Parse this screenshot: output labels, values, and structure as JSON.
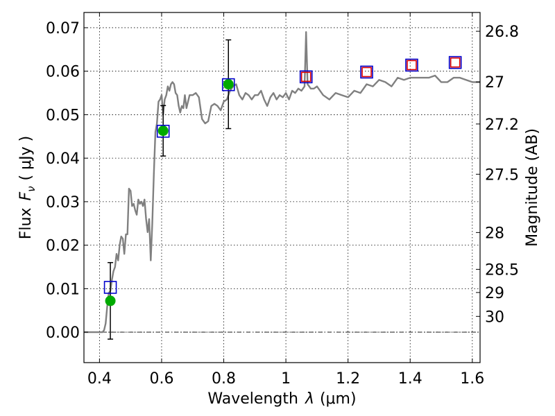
{
  "chart_data": {
    "type": "scatter",
    "xlabel_prefix": "Wavelength",
    "xlabel_var": "λ",
    "xlabel_unit": "(μm)",
    "ylabel_prefix": "Flux",
    "ylabel_var": "F",
    "ylabel_sub": "ν",
    "ylabel_unit": "( μJy )",
    "y2label": "Magnitude (AB)",
    "xlim": [
      0.35,
      1.625
    ],
    "ylim": [
      -0.007,
      0.0735
    ],
    "x_ticks": [
      0.4,
      0.6,
      0.8,
      1.0,
      1.2,
      1.4,
      1.6
    ],
    "x_tick_labels": [
      "0.4",
      "0.6",
      "0.8",
      "1",
      "1.2",
      "1.4",
      "1.6"
    ],
    "y_ticks": [
      0.0,
      0.01,
      0.02,
      0.03,
      0.04,
      0.05,
      0.06,
      0.07
    ],
    "y_tick_labels": [
      "0.00",
      "0.01",
      "0.02",
      "0.03",
      "0.04",
      "0.05",
      "0.06",
      "0.07"
    ],
    "y2_ticks": [
      {
        "label": "26.8",
        "flux": 0.06918
      },
      {
        "label": "27",
        "flux": 0.05754
      },
      {
        "label": "27.2",
        "flux": 0.04786
      },
      {
        "label": "27.5",
        "flux": 0.03631
      },
      {
        "label": "28",
        "flux": 0.02291
      },
      {
        "label": "28.5",
        "flux": 0.01445
      },
      {
        "label": "29",
        "flux": 0.00912
      },
      {
        "label": "30",
        "flux": 0.00363
      }
    ],
    "grid": true,
    "series": [
      {
        "name": "template_spectrum",
        "kind": "line",
        "color": "#808080",
        "x": [
          0.35,
          0.41,
          0.415,
          0.42,
          0.425,
          0.43,
          0.435,
          0.44,
          0.445,
          0.45,
          0.455,
          0.46,
          0.465,
          0.47,
          0.475,
          0.48,
          0.485,
          0.49,
          0.495,
          0.5,
          0.505,
          0.51,
          0.515,
          0.52,
          0.525,
          0.53,
          0.535,
          0.54,
          0.545,
          0.55,
          0.555,
          0.56,
          0.565,
          0.57,
          0.575,
          0.58,
          0.585,
          0.59,
          0.595,
          0.6,
          0.605,
          0.61,
          0.615,
          0.62,
          0.625,
          0.63,
          0.635,
          0.64,
          0.645,
          0.65,
          0.655,
          0.66,
          0.665,
          0.67,
          0.675,
          0.68,
          0.685,
          0.69,
          0.695,
          0.7,
          0.71,
          0.72,
          0.73,
          0.74,
          0.75,
          0.76,
          0.77,
          0.78,
          0.79,
          0.8,
          0.81,
          0.82,
          0.83,
          0.84,
          0.85,
          0.86,
          0.87,
          0.88,
          0.89,
          0.9,
          0.91,
          0.92,
          0.93,
          0.94,
          0.95,
          0.96,
          0.97,
          0.98,
          0.99,
          1.0,
          1.01,
          1.02,
          1.03,
          1.04,
          1.05,
          1.06,
          1.065,
          1.07,
          1.075,
          1.08,
          1.09,
          1.1,
          1.12,
          1.14,
          1.16,
          1.18,
          1.2,
          1.22,
          1.24,
          1.26,
          1.28,
          1.3,
          1.32,
          1.34,
          1.36,
          1.38,
          1.4,
          1.42,
          1.44,
          1.46,
          1.48,
          1.5,
          1.52,
          1.54,
          1.56,
          1.58,
          1.6,
          1.625
        ],
        "y": [
          0.0,
          0.0,
          0.0005,
          0.002,
          0.006,
          0.009,
          0.0095,
          0.012,
          0.014,
          0.015,
          0.018,
          0.0165,
          0.02,
          0.022,
          0.0215,
          0.018,
          0.0225,
          0.0225,
          0.033,
          0.0325,
          0.029,
          0.0295,
          0.028,
          0.027,
          0.0305,
          0.0295,
          0.03,
          0.029,
          0.0305,
          0.026,
          0.023,
          0.026,
          0.0165,
          0.025,
          0.0365,
          0.046,
          0.048,
          0.053,
          0.0535,
          0.0545,
          0.05,
          0.0535,
          0.0545,
          0.0565,
          0.0555,
          0.057,
          0.0575,
          0.057,
          0.055,
          0.0545,
          0.052,
          0.0505,
          0.052,
          0.0515,
          0.0545,
          0.0515,
          0.053,
          0.0545,
          0.0545,
          0.0545,
          0.055,
          0.054,
          0.049,
          0.048,
          0.0485,
          0.052,
          0.0525,
          0.052,
          0.051,
          0.053,
          0.0535,
          0.0555,
          0.0565,
          0.057,
          0.0545,
          0.0535,
          0.055,
          0.0545,
          0.0535,
          0.0545,
          0.0545,
          0.0555,
          0.0535,
          0.052,
          0.054,
          0.055,
          0.0535,
          0.0545,
          0.054,
          0.055,
          0.0535,
          0.0555,
          0.055,
          0.056,
          0.0555,
          0.0565,
          0.069,
          0.057,
          0.0565,
          0.056,
          0.056,
          0.0565,
          0.0545,
          0.0535,
          0.055,
          0.0545,
          0.054,
          0.0555,
          0.055,
          0.057,
          0.0565,
          0.058,
          0.0575,
          0.0565,
          0.0585,
          0.058,
          0.0585,
          0.0585,
          0.0585,
          0.0585,
          0.059,
          0.0575,
          0.0575,
          0.0585,
          0.0585,
          0.058,
          0.0575,
          0.0575
        ]
      },
      {
        "name": "observed_photometry",
        "kind": "points",
        "color": "#00aa00",
        "x": [
          0.435,
          0.605,
          0.815
        ],
        "y": [
          0.0072,
          0.0463,
          0.057
        ],
        "yerr_low": [
          0.0088,
          0.0058,
          0.0102
        ],
        "yerr_high": [
          0.0088,
          0.0058,
          0.0102
        ]
      },
      {
        "name": "model_blue_squares",
        "kind": "squares",
        "color": "#0000cc",
        "x": [
          0.435,
          0.605,
          0.815,
          1.065,
          1.26,
          1.405,
          1.545
        ],
        "y": [
          0.0103,
          0.0462,
          0.0569,
          0.0587,
          0.0598,
          0.0614,
          0.062
        ]
      },
      {
        "name": "model_red_squares",
        "kind": "squares",
        "color": "#dd0000",
        "x": [
          1.065,
          1.26,
          1.405,
          1.545
        ],
        "y": [
          0.0587,
          0.0598,
          0.0614,
          0.062
        ]
      }
    ]
  }
}
